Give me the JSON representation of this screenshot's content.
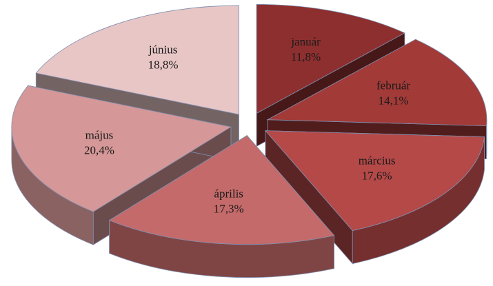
{
  "chart_data": {
    "type": "pie3d",
    "categories": [
      "január",
      "február",
      "március",
      "április",
      "május",
      "június"
    ],
    "values": [
      11.8,
      14.1,
      17.6,
      17.3,
      20.4,
      18.8
    ],
    "value_labels": [
      "11,8%",
      "14,1%",
      "17,6%",
      "17,3%",
      "20,4%",
      "18,8%"
    ],
    "colors": [
      "#8e2f2f",
      "#a23a38",
      "#b44948",
      "#c46a6a",
      "#d59797",
      "#e8c6c6"
    ]
  }
}
